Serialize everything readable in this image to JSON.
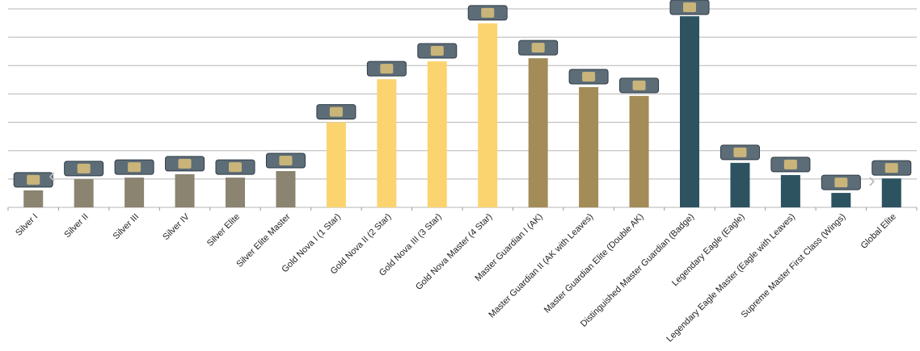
{
  "chart_data": {
    "type": "bar",
    "categories": [
      "Silver I",
      "Silver II",
      "Silver III",
      "Silver IV",
      "Silver Elite",
      "Silver Elite Master",
      "Gold Nova I (1 Star)",
      "Gold Nova II (2 Star)",
      "Gold Nova III (3 Star)",
      "Gold Nova Master (4 Star)",
      "Master Guardian I (AK)",
      "Master Guardian II (AK with Leaves)",
      "Master Guardian Elite (Double AK)",
      "Distinguished Master Guardian (Badge)",
      "Legendary Eagle (Eagle)",
      "Legendary Eagle Master (Eagle with Leaves)",
      "Supreme Master First Class (Wings)",
      "Global Elite"
    ],
    "values": [
      0.6,
      1.0,
      1.05,
      1.17,
      1.05,
      1.28,
      3.0,
      4.52,
      5.15,
      6.49,
      5.26,
      4.24,
      3.93,
      6.74,
      1.57,
      1.14,
      0.51,
      1.02
    ],
    "colors": [
      "#8a8470",
      "#8a8470",
      "#8a8470",
      "#8a8470",
      "#8a8470",
      "#8a8470",
      "#fbd46f",
      "#fbd46f",
      "#fbd46f",
      "#fbd46f",
      "#a38c57",
      "#a38c57",
      "#a38c57",
      "#2d5361",
      "#2d5361",
      "#2d5361",
      "#2d5361",
      "#2d5361"
    ],
    "ylim": [
      0,
      7
    ],
    "yticks": [
      0,
      1,
      2,
      3,
      4,
      5,
      6,
      7
    ],
    "grid": true
  }
}
